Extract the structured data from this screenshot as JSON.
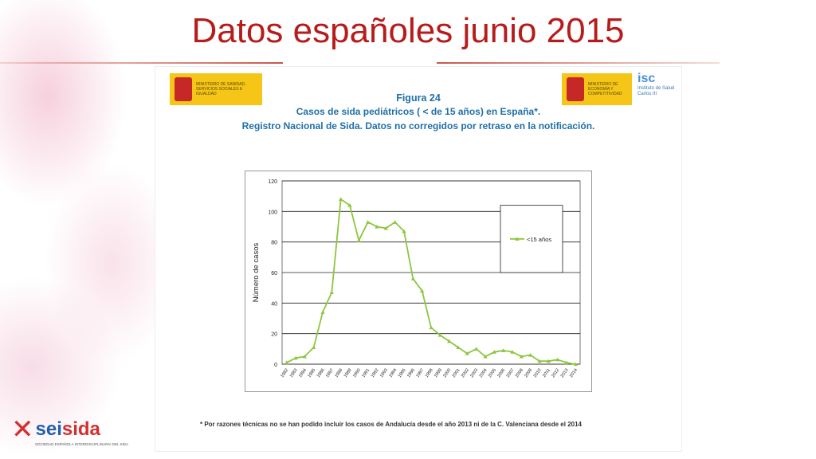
{
  "slide_title": "Datos españoles junio 2015",
  "logos": {
    "left_text": "MINISTERIO DE SANIDAD, SERVICIOS SOCIALES E IGUALDAD",
    "right_text": "MINISTERIO DE ECONOMÍA Y COMPETITIVIDAD",
    "isciii_mark": "isc",
    "isciii_text": "Instituto de Salud Carlos III"
  },
  "figure": {
    "label": "Figura 24",
    "line1": "Casos de sida pediátricos ( < de 15 años) en España*.",
    "line2": "Registro Nacional de Sida. Datos no corregidos por retraso en la notificación.",
    "footnote": "* Por razones técnicas no se han podido incluir los casos de Andalucía desde el año 2013 ni de la C. Valenciana desde el 2014"
  },
  "brand": {
    "prefix": "sei",
    "name": "sida",
    "subtitle": "SOCIEDAD ESPAÑOLA INTERDISCIPLINARIA DEL SIDA"
  },
  "colors": {
    "title": "#b71c1c",
    "series": "#8dc63f",
    "heading": "#1f6fa8"
  },
  "chart_data": {
    "type": "line",
    "title": "",
    "xlabel": "",
    "ylabel": "Número de casos",
    "ylim": [
      0,
      120
    ],
    "yticks": [
      0,
      20,
      40,
      60,
      80,
      100,
      120
    ],
    "grid": true,
    "legend_position": "right",
    "x": [
      "1982",
      "1983",
      "1984",
      "1985",
      "1986",
      "1987",
      "1988",
      "1989",
      "1990",
      "1991",
      "1992",
      "1993",
      "1994",
      "1995",
      "1996",
      "1997",
      "1998",
      "1999",
      "2000",
      "2001",
      "2002",
      "2003",
      "2004",
      "2005",
      "2006",
      "2007",
      "2008",
      "2009",
      "2010",
      "2011",
      "2012",
      "2013",
      "2014"
    ],
    "series": [
      {
        "name": "<15 años",
        "values": [
          1,
          4,
          5,
          11,
          34,
          47,
          108,
          104,
          81,
          93,
          90,
          89,
          93,
          87,
          56,
          48,
          24,
          19,
          15,
          11,
          7,
          10,
          5,
          8,
          9,
          8,
          5,
          6,
          2,
          2,
          3,
          1,
          0
        ]
      }
    ]
  }
}
